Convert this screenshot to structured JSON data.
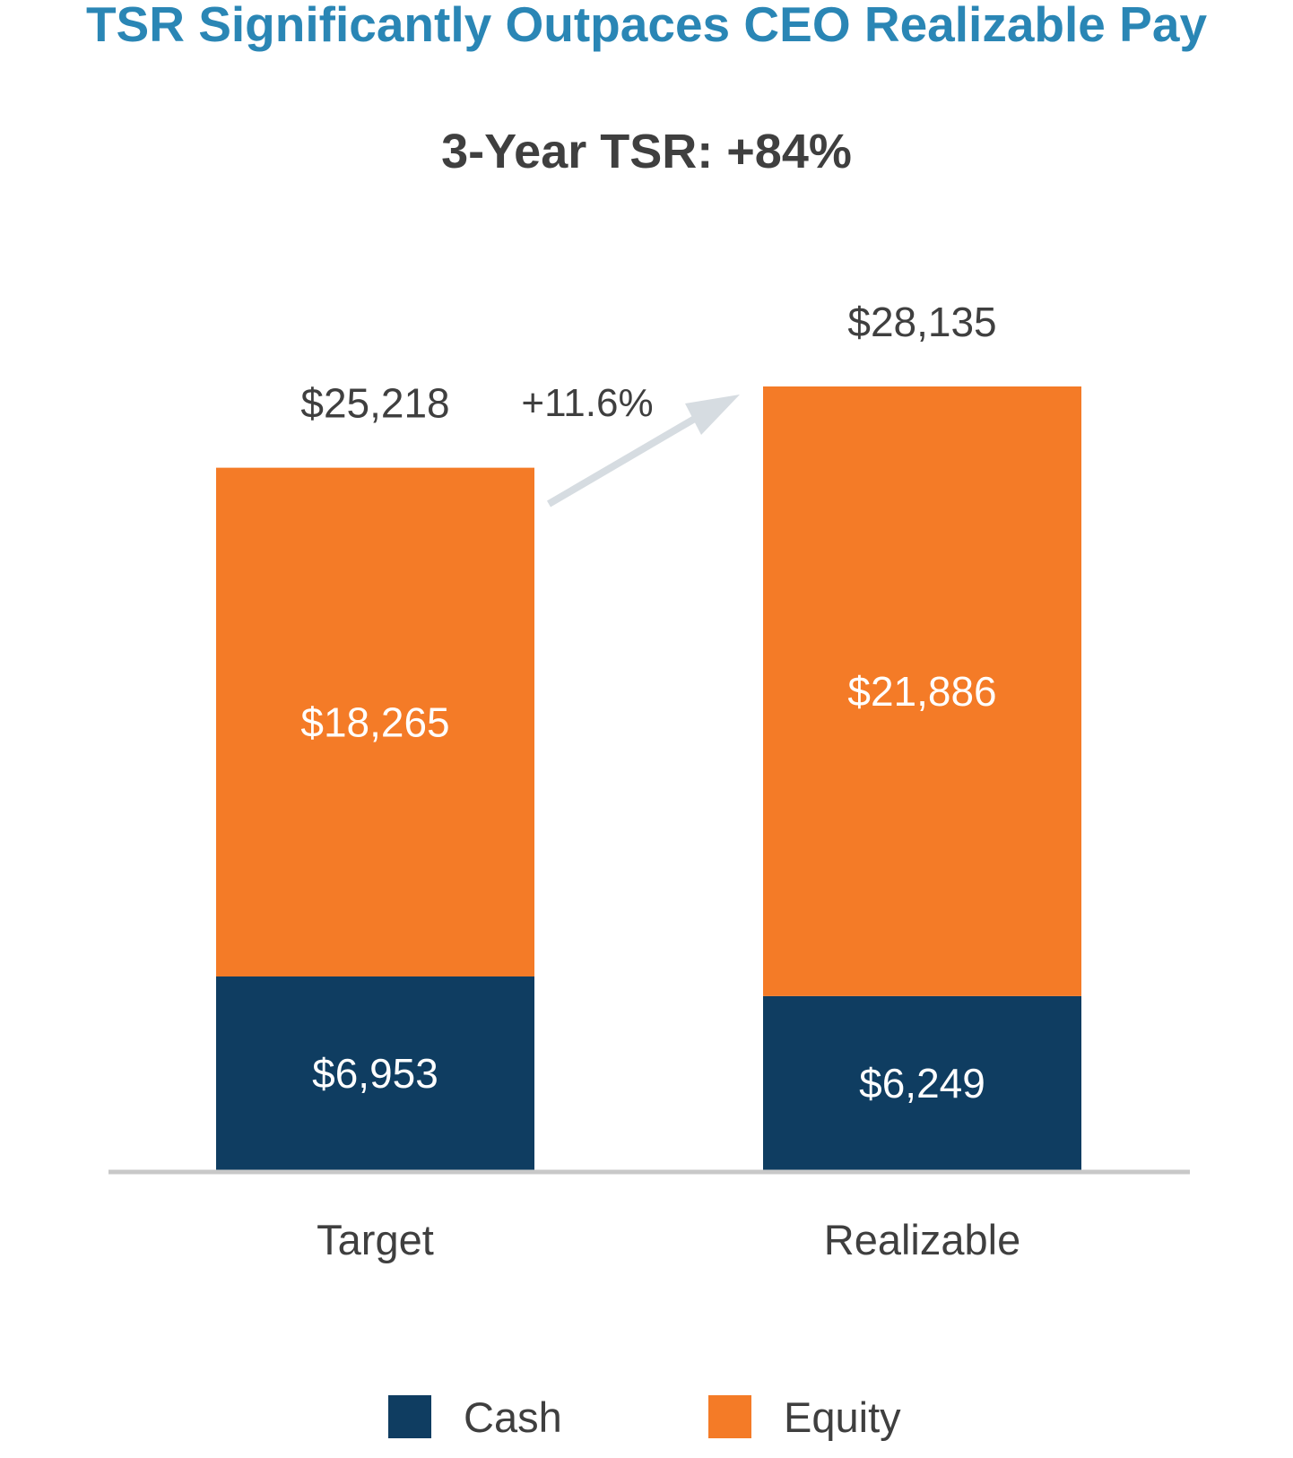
{
  "chart_data": {
    "type": "bar",
    "stacked": true,
    "title": "TSR Significantly Outpaces CEO Realizable Pay",
    "subtitle": "3-Year TSR: +84%",
    "categories": [
      "Target",
      "Realizable"
    ],
    "series": [
      {
        "name": "Cash",
        "values": [
          6953,
          6249
        ],
        "labels": [
          "$6,953",
          "$6,249"
        ],
        "color": "#0F3D61"
      },
      {
        "name": "Equity",
        "values": [
          18265,
          21886
        ],
        "labels": [
          "$18,265",
          "$21,886"
        ],
        "color": "#F47B27"
      }
    ],
    "totals": [
      25218,
      28135
    ],
    "total_labels": [
      "$25,218",
      "$28,135"
    ],
    "change_label": "+11.6%",
    "ylim": [
      0,
      28135
    ],
    "grid": false,
    "legend_position": "bottom"
  },
  "colors": {
    "title": "#2A86B5",
    "subtitle": "#3F3F3F",
    "text": "#3F3F3F",
    "axis": "#C8C8C8",
    "arrow": "#D6DCE1",
    "inbar_text": "#FFFFFF"
  }
}
